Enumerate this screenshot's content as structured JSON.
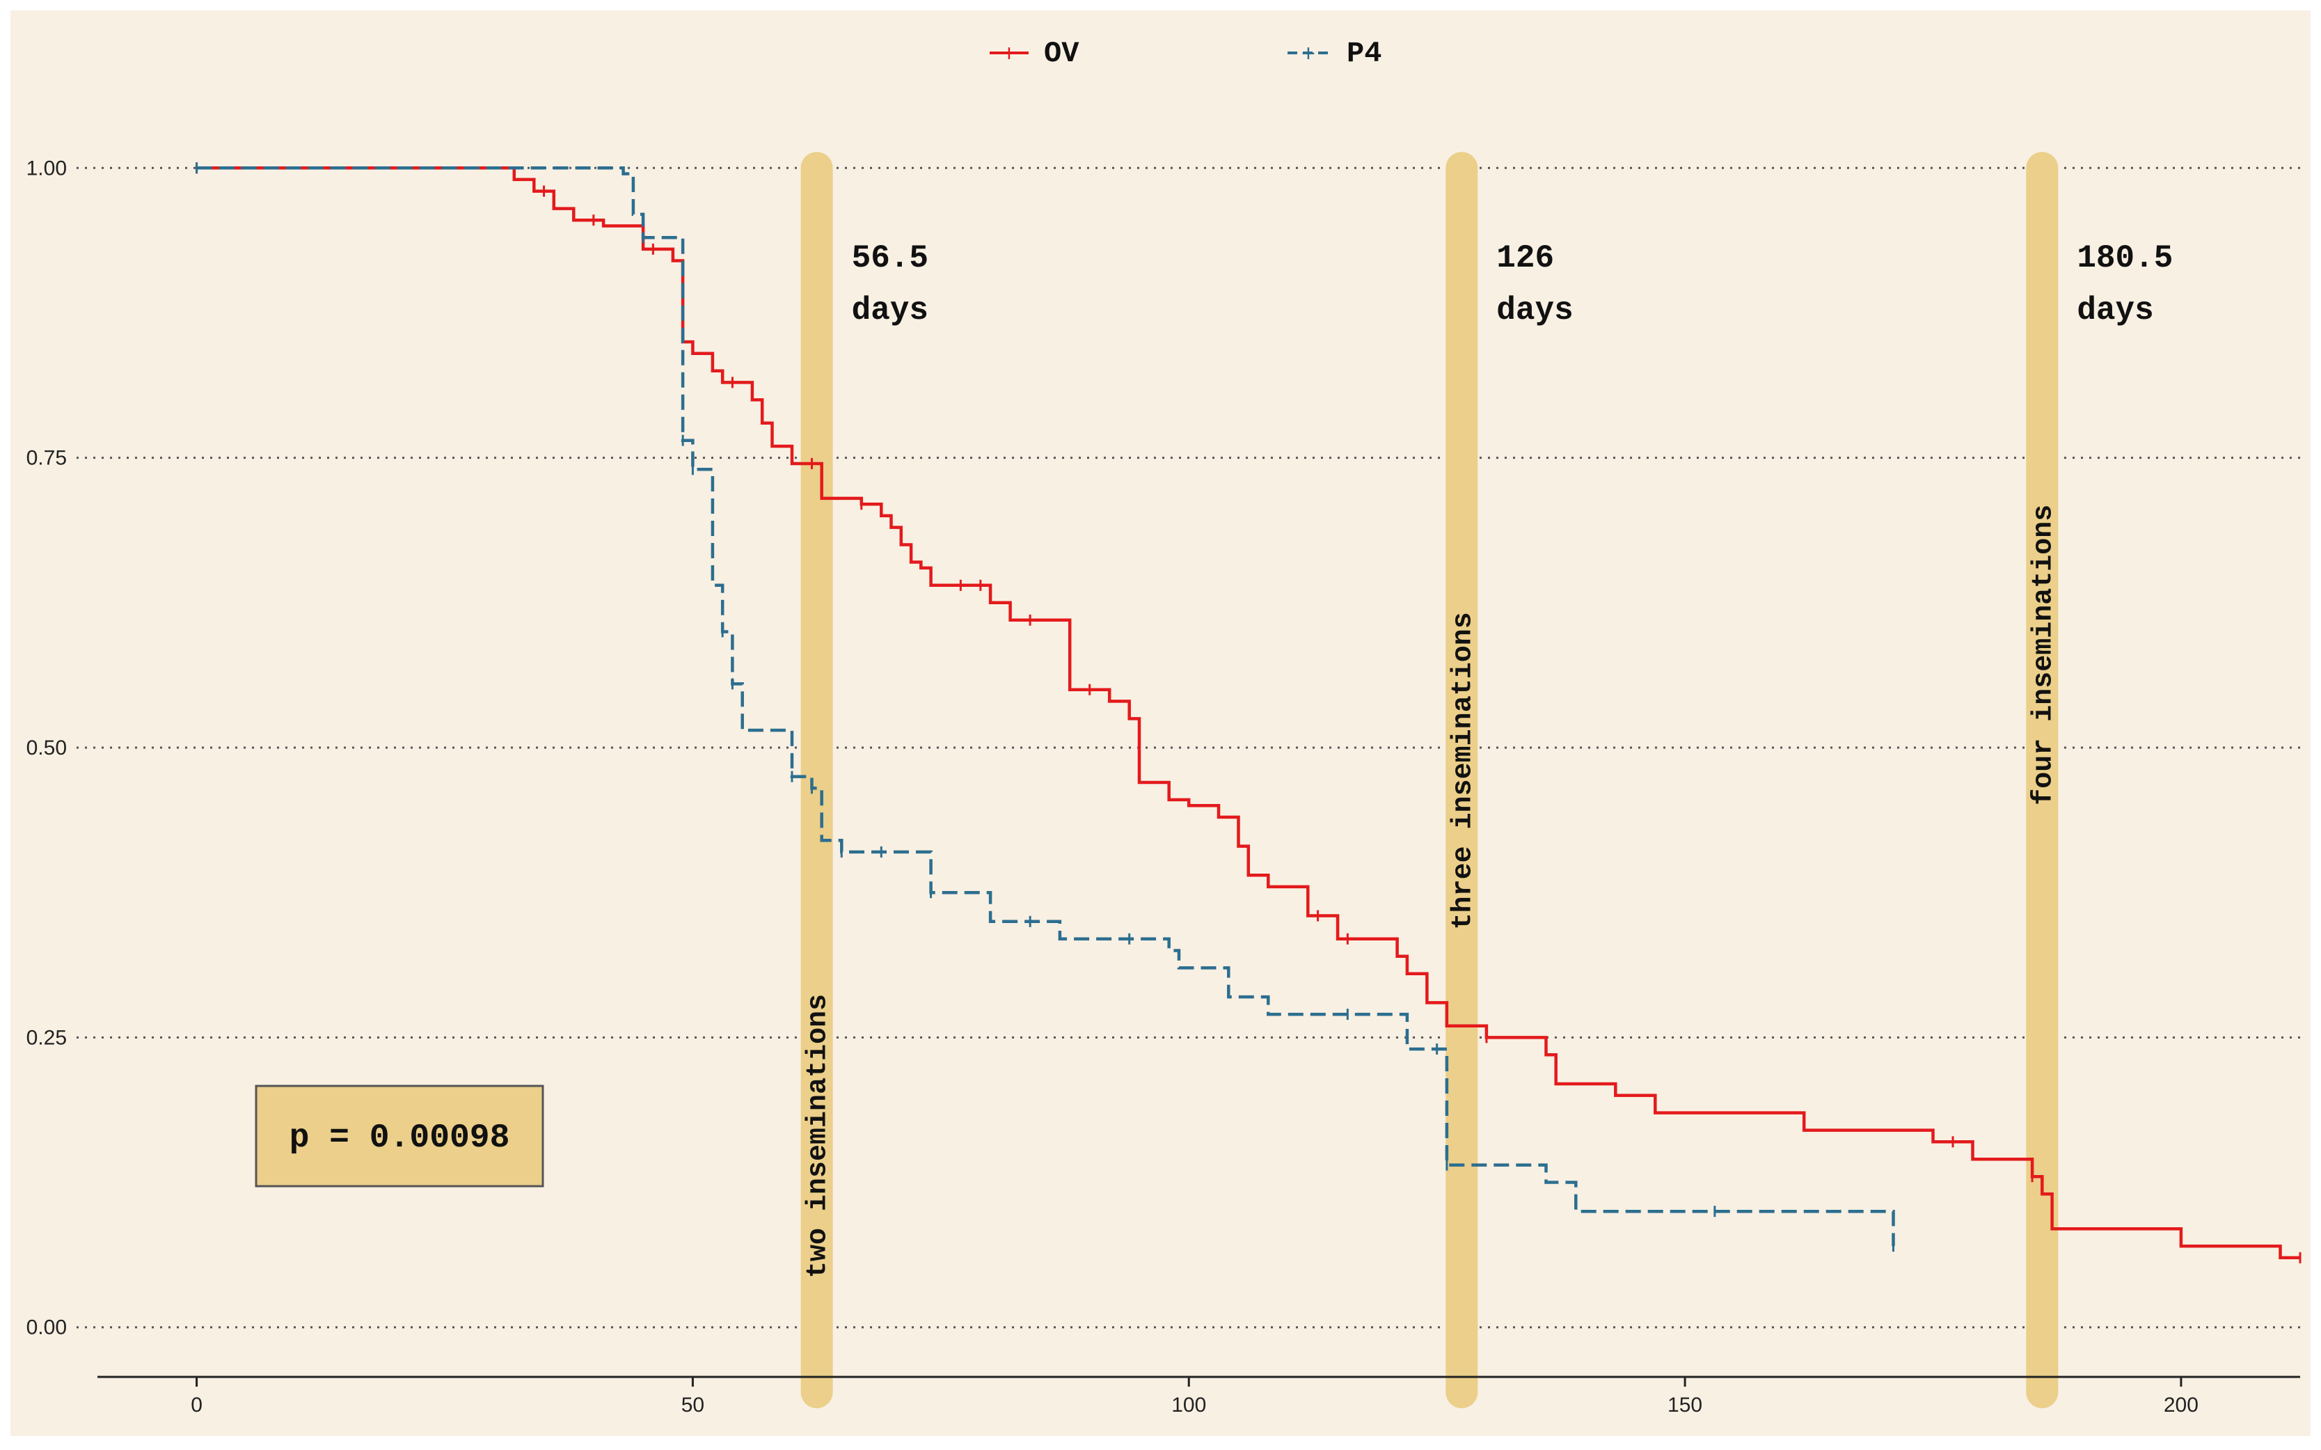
{
  "chart_data": {
    "type": "line",
    "title": "",
    "xlabel": "",
    "ylabel": "",
    "xlim": [
      -10,
      212
    ],
    "ylim": [
      -0.05,
      1.05
    ],
    "x_ticks": [
      0,
      50,
      100,
      150,
      200
    ],
    "x_tick_labels": [
      "0",
      "50",
      "100",
      "150",
      "200"
    ],
    "y_ticks": [
      0,
      0.25,
      0.5,
      0.75,
      1
    ],
    "y_tick_labels": [
      "0.00",
      "0.25",
      "0.50",
      "0.75",
      "1.00"
    ],
    "grid": "horizontal dotted",
    "legend_position": "top-center",
    "background_color": "#f8f0e3",
    "series": [
      {
        "name": "OV",
        "label": "OV",
        "color": "#e31a1c",
        "style": "solid",
        "steps": [
          [
            0,
            1
          ],
          [
            32,
            0.99
          ],
          [
            34,
            0.98
          ],
          [
            36,
            0.965
          ],
          [
            38,
            0.955
          ],
          [
            41,
            0.95
          ],
          [
            45,
            0.93
          ],
          [
            48,
            0.92
          ],
          [
            49,
            0.85
          ],
          [
            50,
            0.84
          ],
          [
            52,
            0.825
          ],
          [
            53,
            0.815
          ],
          [
            56,
            0.8
          ],
          [
            57,
            0.78
          ],
          [
            58,
            0.76
          ],
          [
            60,
            0.745
          ],
          [
            63,
            0.715
          ],
          [
            67,
            0.71
          ],
          [
            69,
            0.7
          ],
          [
            70,
            0.69
          ],
          [
            71,
            0.675
          ],
          [
            72,
            0.66
          ],
          [
            73,
            0.655
          ],
          [
            74,
            0.64
          ],
          [
            80,
            0.625
          ],
          [
            82,
            0.61
          ],
          [
            88,
            0.55
          ],
          [
            92,
            0.54
          ],
          [
            94,
            0.525
          ],
          [
            95,
            0.47
          ],
          [
            98,
            0.455
          ],
          [
            100,
            0.45
          ],
          [
            103,
            0.44
          ],
          [
            105,
            0.415
          ],
          [
            106,
            0.39
          ],
          [
            108,
            0.38
          ],
          [
            112,
            0.355
          ],
          [
            115,
            0.335
          ],
          [
            121,
            0.32
          ],
          [
            122,
            0.305
          ],
          [
            124,
            0.28
          ],
          [
            126,
            0.26
          ],
          [
            130,
            0.25
          ],
          [
            136,
            0.235
          ],
          [
            137,
            0.21
          ],
          [
            143,
            0.2
          ],
          [
            147,
            0.185
          ],
          [
            162,
            0.17
          ],
          [
            175,
            0.16
          ],
          [
            179,
            0.145
          ],
          [
            185,
            0.13
          ],
          [
            186,
            0.115
          ],
          [
            187,
            0.085
          ],
          [
            200,
            0.07
          ],
          [
            210,
            0.06
          ],
          [
            212,
            0.06
          ]
        ],
        "censor_x": [
          0,
          35,
          40,
          46,
          54,
          62,
          67,
          77,
          79,
          84,
          90,
          113,
          116,
          130,
          177,
          185,
          212
        ]
      },
      {
        "name": "P4",
        "label": "P4",
        "color": "#2c6e8f",
        "style": "dashed",
        "steps": [
          [
            0,
            1
          ],
          [
            43,
            0.995
          ],
          [
            44,
            0.96
          ],
          [
            45,
            0.94
          ],
          [
            49,
            0.765
          ],
          [
            50,
            0.74
          ],
          [
            52,
            0.64
          ],
          [
            53,
            0.6
          ],
          [
            54,
            0.555
          ],
          [
            55,
            0.515
          ],
          [
            60,
            0.475
          ],
          [
            62,
            0.465
          ],
          [
            63,
            0.42
          ],
          [
            65,
            0.41
          ],
          [
            74,
            0.375
          ],
          [
            80,
            0.35
          ],
          [
            87,
            0.335
          ],
          [
            98,
            0.325
          ],
          [
            99,
            0.31
          ],
          [
            104,
            0.285
          ],
          [
            108,
            0.27
          ],
          [
            122,
            0.24
          ],
          [
            126,
            0.14
          ],
          [
            136,
            0.125
          ],
          [
            139,
            0.1
          ],
          [
            171,
            0.07
          ]
        ],
        "censor_x": [
          0,
          45,
          49,
          50,
          53,
          54,
          60,
          62,
          65,
          69,
          74,
          84,
          94,
          116,
          125,
          126,
          153,
          171
        ]
      }
    ],
    "annotations": [
      {
        "x": 62.5,
        "days_label": "56.5",
        "unit_label": "days",
        "vertical_label": "two inseminations",
        "label_side": "bottom"
      },
      {
        "x": 127.5,
        "days_label": "126",
        "unit_label": "days",
        "vertical_label": "three inseminations",
        "label_side": "middle"
      },
      {
        "x": 186,
        "days_label": "180.5",
        "unit_label": "days",
        "vertical_label": "four inseminations",
        "label_side": "top"
      }
    ],
    "annotation_color": "#ebcf8a",
    "p_value_label": "p = 0.00098"
  }
}
